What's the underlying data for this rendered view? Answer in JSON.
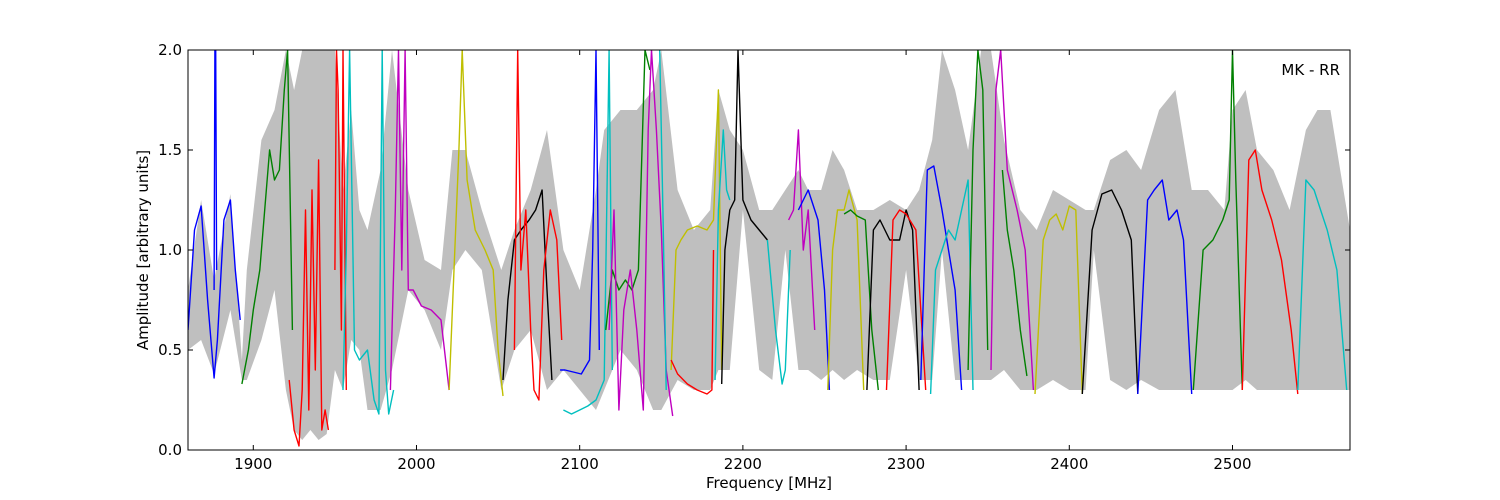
{
  "chart_data": {
    "type": "line",
    "title": "",
    "xlabel": "Frequency [MHz]",
    "ylabel": "Amplitude [arbitrary units]",
    "annotation": "MK - RR",
    "xlim": [
      1860,
      2572
    ],
    "ylim": [
      0.0,
      2.0
    ],
    "x_ticks": [
      1900,
      2000,
      2100,
      2200,
      2300,
      2400,
      2500
    ],
    "y_ticks": [
      0.0,
      0.5,
      1.0,
      1.5,
      2.0
    ],
    "y_tick_labels": [
      "0.0",
      "0.5",
      "1.0",
      "1.5",
      "2.0"
    ],
    "grid": false,
    "envelope": {
      "color": "#bfbfbf",
      "x": [
        1860,
        1868,
        1876,
        1886,
        1893,
        1896,
        1905,
        1913,
        1920,
        1925,
        1930,
        1935,
        1940,
        1945,
        1950,
        1955,
        1960,
        1965,
        1970,
        1978,
        1985,
        1995,
        2005,
        2015,
        2022,
        2030,
        2040,
        2052,
        2060,
        2070,
        2080,
        2090,
        2100,
        2110,
        2115,
        2125,
        2135,
        2145,
        2150,
        2160,
        2170,
        2180,
        2185,
        2192,
        2200,
        2210,
        2218,
        2226,
        2234,
        2240,
        2248,
        2255,
        2262,
        2270,
        2280,
        2290,
        2300,
        2308,
        2316,
        2322,
        2330,
        2338,
        2346,
        2352,
        2360,
        2370,
        2380,
        2390,
        2400,
        2410,
        2415,
        2425,
        2435,
        2444,
        2455,
        2465,
        2475,
        2485,
        2495,
        2500,
        2508,
        2515,
        2525,
        2535,
        2545,
        2552,
        2560,
        2572
      ],
      "upper": [
        0.8,
        1.25,
        0.85,
        1.28,
        0.45,
        0.9,
        1.55,
        1.7,
        2.0,
        1.8,
        2.0,
        2.0,
        2.0,
        2.0,
        2.0,
        1.3,
        1.7,
        1.2,
        1.1,
        1.4,
        2.0,
        1.3,
        0.95,
        0.9,
        1.5,
        1.5,
        1.2,
        0.9,
        1.1,
        1.3,
        1.6,
        1.0,
        0.8,
        1.3,
        1.6,
        1.7,
        1.7,
        1.8,
        2.0,
        1.3,
        1.1,
        1.2,
        1.8,
        1.6,
        1.5,
        1.2,
        1.2,
        1.3,
        1.4,
        1.3,
        1.3,
        1.5,
        1.4,
        1.2,
        1.2,
        1.25,
        1.2,
        1.3,
        1.55,
        2.0,
        1.8,
        1.5,
        2.0,
        2.0,
        1.55,
        1.2,
        1.1,
        1.3,
        1.25,
        1.2,
        1.2,
        1.45,
        1.5,
        1.4,
        1.7,
        1.8,
        1.3,
        1.3,
        1.2,
        1.7,
        1.8,
        1.5,
        1.4,
        1.2,
        1.6,
        1.7,
        1.7,
        1.1
      ],
      "lower": [
        0.5,
        0.55,
        0.38,
        0.7,
        0.35,
        0.35,
        0.55,
        0.8,
        0.3,
        0.1,
        0.05,
        0.1,
        0.05,
        0.08,
        0.4,
        0.3,
        0.55,
        0.5,
        0.2,
        0.2,
        0.4,
        0.8,
        0.7,
        0.5,
        0.9,
        1.0,
        0.9,
        0.3,
        0.5,
        0.6,
        0.3,
        0.4,
        0.3,
        0.2,
        0.3,
        0.5,
        0.4,
        0.2,
        0.2,
        0.35,
        0.3,
        0.3,
        0.4,
        0.4,
        1.2,
        0.4,
        0.35,
        1.0,
        0.4,
        0.4,
        0.35,
        0.4,
        0.35,
        0.4,
        0.35,
        0.35,
        0.9,
        0.35,
        0.35,
        1.0,
        0.35,
        0.35,
        0.35,
        0.35,
        0.4,
        0.3,
        0.3,
        0.35,
        0.3,
        0.3,
        1.0,
        0.35,
        0.3,
        0.35,
        0.3,
        0.3,
        0.3,
        0.3,
        0.3,
        0.3,
        0.35,
        0.3,
        0.3,
        0.3,
        0.3,
        0.3,
        0.3,
        0.3
      ]
    },
    "series": [
      {
        "color": "#0000ff",
        "x": [
          1860,
          1864,
          1868,
          1872,
          1876,
          1878,
          1882,
          1886,
          1889,
          1892
        ],
        "y": [
          0.6,
          1.1,
          1.22,
          0.75,
          0.36,
          0.55,
          1.15,
          1.25,
          0.9,
          0.65
        ]
      },
      {
        "color": "#0000ff",
        "x": [
          1876,
          1876.5,
          1877,
          1877.5
        ],
        "y": [
          0.8,
          2.0,
          2.0,
          0.9
        ]
      },
      {
        "color": "#008000",
        "x": [
          1893,
          1897,
          1900,
          1904,
          1907,
          1910,
          1913,
          1916,
          1919,
          1921,
          1924
        ],
        "y": [
          0.33,
          0.5,
          0.7,
          0.9,
          1.2,
          1.5,
          1.35,
          1.4,
          1.8,
          2.0,
          0.6
        ]
      },
      {
        "color": "#ff0000",
        "x": [
          1922,
          1925,
          1928,
          1930,
          1932,
          1934,
          1936,
          1938,
          1940,
          1942,
          1944,
          1946
        ],
        "y": [
          0.35,
          0.1,
          0.02,
          0.3,
          1.2,
          0.2,
          1.3,
          0.4,
          1.45,
          0.1,
          0.2,
          0.1
        ]
      },
      {
        "color": "#ff0000",
        "x": [
          1950,
          1951,
          1952,
          1953,
          1954,
          1955,
          1957
        ],
        "y": [
          0.9,
          2.0,
          1.8,
          1.2,
          0.6,
          2.0,
          0.3
        ]
      },
      {
        "color": "#00bfbf",
        "x": [
          1955,
          1957,
          1959,
          1962,
          1965,
          1970,
          1974,
          1977,
          1979,
          1981,
          1983,
          1986
        ],
        "y": [
          0.3,
          1.0,
          2.0,
          0.5,
          0.45,
          0.5,
          0.25,
          0.18,
          2.0,
          0.4,
          0.18,
          0.3
        ]
      },
      {
        "color": "#bf00bf",
        "x": [
          1984,
          1987,
          1989,
          1991,
          1993,
          1995,
          1998,
          2003,
          2009,
          2015,
          2020
        ],
        "y": [
          0.3,
          1.2,
          2.0,
          0.9,
          2.0,
          0.8,
          0.8,
          0.72,
          0.7,
          0.65,
          0.3
        ]
      },
      {
        "color": "#bfbf00",
        "x": [
          2020,
          2023,
          2026,
          2028,
          2031,
          2036,
          2042,
          2047,
          2050,
          2053
        ],
        "y": [
          0.3,
          0.9,
          1.5,
          2.0,
          1.35,
          1.1,
          1.0,
          0.9,
          0.5,
          0.27
        ]
      },
      {
        "color": "#000000",
        "x": [
          2053,
          2056,
          2060,
          2064,
          2069,
          2073,
          2077,
          2080,
          2083
        ],
        "y": [
          0.35,
          0.75,
          1.05,
          1.1,
          1.15,
          1.2,
          1.3,
          0.8,
          0.35
        ]
      },
      {
        "color": "#ff0000",
        "x": [
          2060,
          2062,
          2064,
          2067,
          2070,
          2072,
          2075,
          2078,
          2082,
          2086,
          2089
        ],
        "y": [
          0.5,
          2.0,
          0.9,
          1.2,
          0.6,
          0.3,
          0.25,
          0.9,
          1.2,
          1.05,
          0.55
        ]
      },
      {
        "color": "#0000ff",
        "x": [
          2088,
          2091,
          2096,
          2101,
          2106,
          2108,
          2110,
          2112
        ],
        "y": [
          0.4,
          0.4,
          0.39,
          0.38,
          0.45,
          1.0,
          2.0,
          0.5
        ]
      },
      {
        "color": "#00bfbf",
        "x": [
          2090,
          2095,
          2100,
          2105,
          2110,
          2115,
          2118,
          2120
        ],
        "y": [
          0.2,
          0.18,
          0.2,
          0.22,
          0.25,
          0.35,
          2.0,
          0.4
        ]
      },
      {
        "color": "#008000",
        "x": [
          2116,
          2120,
          2124,
          2128,
          2132,
          2136,
          2140,
          2143
        ],
        "y": [
          0.6,
          0.9,
          0.8,
          0.85,
          0.8,
          0.9,
          2.0,
          1.9
        ]
      },
      {
        "color": "#bf00bf",
        "x": [
          2118,
          2121,
          2124,
          2127,
          2131,
          2135,
          2139,
          2142,
          2144,
          2147,
          2150,
          2153,
          2157
        ],
        "y": [
          0.6,
          1.2,
          0.2,
          0.7,
          0.9,
          0.6,
          0.2,
          1.6,
          2.0,
          1.6,
          1.1,
          0.4,
          0.17
        ]
      },
      {
        "color": "#00bfbf",
        "x": [
          2149,
          2151,
          2153
        ],
        "y": [
          2.0,
          1.2,
          0.3
        ]
      },
      {
        "color": "#bfbf00",
        "x": [
          2156,
          2159,
          2162,
          2166,
          2172,
          2178,
          2182,
          2185,
          2187
        ],
        "y": [
          0.4,
          1.0,
          1.05,
          1.1,
          1.12,
          1.1,
          1.15,
          1.8,
          0.4
        ]
      },
      {
        "color": "#ff0000",
        "x": [
          2156,
          2160,
          2166,
          2172,
          2178,
          2181,
          2182
        ],
        "y": [
          0.45,
          0.38,
          0.33,
          0.3,
          0.28,
          0.3,
          1.0
        ]
      },
      {
        "color": "#00bfbf",
        "x": [
          2183,
          2185,
          2188,
          2190,
          2192
        ],
        "y": [
          0.35,
          1.2,
          1.6,
          1.3,
          1.25
        ]
      },
      {
        "color": "#000000",
        "x": [
          2187,
          2189,
          2192,
          2195,
          2197,
          2200,
          2205,
          2210,
          2215
        ],
        "y": [
          0.33,
          1.0,
          1.2,
          1.25,
          2.0,
          1.25,
          1.15,
          1.1,
          1.05
        ]
      },
      {
        "color": "#00bfbf",
        "x": [
          2215,
          2220,
          2224,
          2226,
          2229
        ],
        "y": [
          1.05,
          0.6,
          0.33,
          0.4,
          1.0
        ]
      },
      {
        "color": "#bf00bf",
        "x": [
          2228,
          2231,
          2234,
          2237,
          2240,
          2244
        ],
        "y": [
          1.15,
          1.2,
          1.6,
          1.0,
          1.2,
          0.6
        ]
      },
      {
        "color": "#0000ff",
        "x": [
          2234,
          2240,
          2246,
          2250,
          2253
        ],
        "y": [
          1.2,
          1.3,
          1.15,
          0.8,
          0.3
        ]
      },
      {
        "color": "#bfbf00",
        "x": [
          2252,
          2255,
          2258,
          2262,
          2265,
          2270,
          2274
        ],
        "y": [
          0.3,
          1.0,
          1.2,
          1.2,
          1.3,
          1.15,
          0.3
        ]
      },
      {
        "color": "#008000",
        "x": [
          2262,
          2266,
          2270,
          2275,
          2279,
          2283
        ],
        "y": [
          1.18,
          1.2,
          1.17,
          1.15,
          0.6,
          0.3
        ]
      },
      {
        "color": "#000000",
        "x": [
          2276,
          2280,
          2284,
          2290,
          2296,
          2300,
          2304,
          2308
        ],
        "y": [
          0.3,
          1.1,
          1.15,
          1.05,
          1.05,
          1.2,
          1.1,
          0.3
        ]
      },
      {
        "color": "#ff0000",
        "x": [
          2288,
          2292,
          2296,
          2300,
          2306,
          2312
        ],
        "y": [
          0.3,
          1.15,
          1.2,
          1.18,
          1.1,
          0.3
        ]
      },
      {
        "color": "#0000ff",
        "x": [
          2309,
          2313,
          2317,
          2322,
          2326,
          2330,
          2334
        ],
        "y": [
          0.35,
          1.4,
          1.42,
          1.2,
          1.0,
          0.8,
          0.3
        ]
      },
      {
        "color": "#00bfbf",
        "x": [
          2315,
          2318,
          2322,
          2326,
          2330,
          2334,
          2338,
          2341
        ],
        "y": [
          0.28,
          0.9,
          1.0,
          1.1,
          1.05,
          1.2,
          1.35,
          0.3
        ]
      },
      {
        "color": "#008000",
        "x": [
          2338,
          2341,
          2344,
          2347,
          2350
        ],
        "y": [
          0.4,
          1.5,
          2.0,
          1.8,
          0.5
        ]
      },
      {
        "color": "#bf00bf",
        "x": [
          2352,
          2355,
          2358,
          2362,
          2368,
          2373,
          2378
        ],
        "y": [
          0.4,
          1.8,
          2.0,
          1.4,
          1.2,
          1.0,
          0.3
        ]
      },
      {
        "color": "#008000",
        "x": [
          2359,
          2362,
          2366,
          2370,
          2374
        ],
        "y": [
          1.4,
          1.1,
          0.9,
          0.6,
          0.37
        ]
      },
      {
        "color": "#bfbf00",
        "x": [
          2379,
          2384,
          2388,
          2392,
          2396,
          2400,
          2404,
          2408
        ],
        "y": [
          0.28,
          1.05,
          1.15,
          1.18,
          1.1,
          1.22,
          1.2,
          0.28
        ]
      },
      {
        "color": "#000000",
        "x": [
          2408,
          2414,
          2420,
          2426,
          2432,
          2438,
          2442
        ],
        "y": [
          0.28,
          1.1,
          1.28,
          1.3,
          1.2,
          1.05,
          0.28
        ]
      },
      {
        "color": "#0000ff",
        "x": [
          2442,
          2448,
          2452,
          2457,
          2461,
          2466,
          2470,
          2475
        ],
        "y": [
          0.28,
          1.25,
          1.3,
          1.35,
          1.15,
          1.2,
          1.05,
          0.28
        ]
      },
      {
        "color": "#008000",
        "x": [
          2476,
          2482,
          2488,
          2494,
          2498,
          2500,
          2502,
          2506
        ],
        "y": [
          0.3,
          1.0,
          1.05,
          1.15,
          1.25,
          2.0,
          1.35,
          0.3
        ]
      },
      {
        "color": "#ff0000",
        "x": [
          2506,
          2510,
          2514,
          2518,
          2524,
          2530,
          2536,
          2540
        ],
        "y": [
          0.3,
          1.45,
          1.5,
          1.3,
          1.15,
          0.95,
          0.6,
          0.28
        ]
      },
      {
        "color": "#00bfbf",
        "x": [
          2540,
          2545,
          2550,
          2554,
          2558,
          2564,
          2570
        ],
        "y": [
          0.3,
          1.35,
          1.3,
          1.2,
          1.1,
          0.9,
          0.3
        ]
      }
    ]
  }
}
